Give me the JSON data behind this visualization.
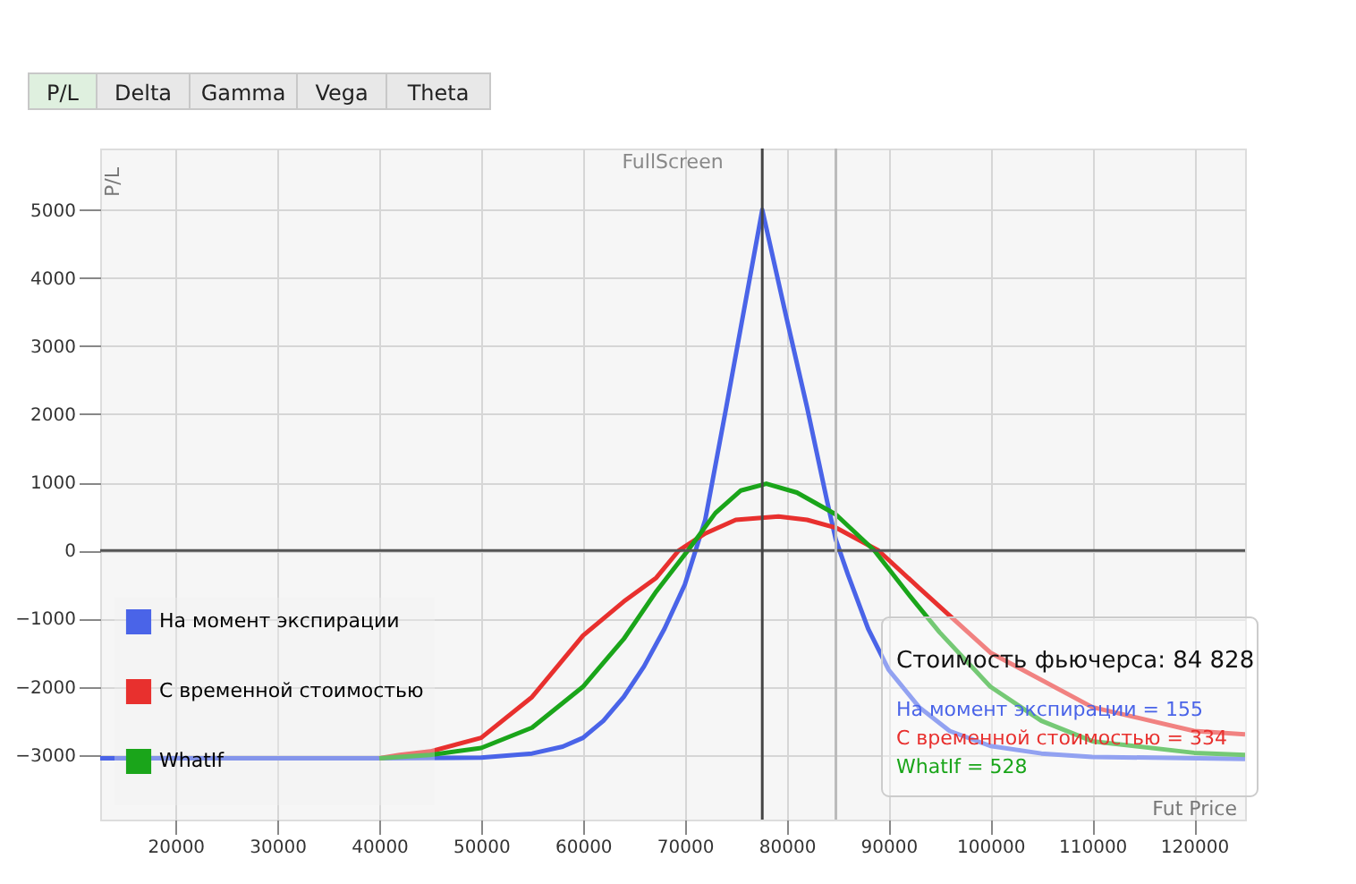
{
  "chart_data": {
    "type": "line",
    "xlabel": "Fut Price",
    "ylabel": "P/L",
    "series": [
      {
        "name": "На момент экспирации",
        "color": "#4a64e8",
        "x": [
          12600,
          40000,
          50000,
          55000,
          58000,
          60000,
          62000,
          64000,
          66000,
          68000,
          70000,
          72000,
          74000,
          77600,
          80000,
          82000,
          84000,
          84828,
          86000,
          88000,
          90000,
          93000,
          96000,
          100000,
          105000,
          110000,
          125000
        ],
        "values": [
          -3050,
          -3050,
          -3040,
          -2980,
          -2880,
          -2750,
          -2500,
          -2150,
          -1700,
          -1150,
          -500,
          450,
          2050,
          5000,
          3400,
          2100,
          700,
          155,
          -350,
          -1150,
          -1750,
          -2300,
          -2650,
          -2870,
          -2980,
          -3030,
          -3060
        ]
      },
      {
        "name": "С временной стоимостью",
        "color": "#e8302e",
        "x": [
          40000,
          42000,
          45000,
          50000,
          55000,
          60000,
          64000,
          67200,
          69400,
          72000,
          75000,
          79200,
          82000,
          84828,
          89000,
          93000,
          100000,
          110000,
          120000,
          125000
        ],
        "values": [
          -3050,
          -3000,
          -2950,
          -2750,
          -2150,
          -1250,
          -750,
          -400,
          0,
          250,
          450,
          500,
          450,
          334,
          0,
          -550,
          -1500,
          -2300,
          -2650,
          -2700
        ]
      },
      {
        "name": "WhatIf",
        "color": "#1aa51a",
        "x": [
          40000,
          45000,
          50000,
          55000,
          60000,
          64000,
          67200,
          70300,
          73000,
          75500,
          78000,
          81000,
          84828,
          88600,
          92000,
          95000,
          100000,
          105000,
          110000,
          120000,
          125000
        ],
        "values": [
          -3050,
          -3000,
          -2900,
          -2600,
          -2000,
          -1300,
          -600,
          0,
          550,
          880,
          980,
          850,
          528,
          0,
          -650,
          -1200,
          -2000,
          -2500,
          -2800,
          -2970,
          -3000
        ]
      }
    ],
    "xlim": [
      12600,
      125000
    ],
    "xticks": [
      20000,
      30000,
      40000,
      50000,
      60000,
      70000,
      80000,
      90000,
      100000,
      110000,
      120000
    ],
    "ylim": [
      -3950,
      5900
    ],
    "yticks": [
      -3000,
      -2000,
      -1000,
      0,
      1000,
      2000,
      3000,
      4000,
      5000
    ],
    "ref_lines": [
      {
        "axis": "y",
        "value": 0,
        "color": "#555555"
      },
      {
        "axis": "x",
        "value": 77600,
        "color": "#444444"
      },
      {
        "axis": "x",
        "value": 84828,
        "color": "#bbbbbb"
      }
    ],
    "annotations": [
      "P/L",
      "Delta",
      "Gamma",
      "Vega",
      "Theta",
      "FullScreen",
      "Стоимость фьючерса: 84 828",
      "На момент экспирации = 155",
      "С временной стоимостью = 334",
      "WhatIf = 528"
    ],
    "grid": true,
    "legend": "bottom left",
    "marker": "none",
    "line_style": "solid"
  }
}
